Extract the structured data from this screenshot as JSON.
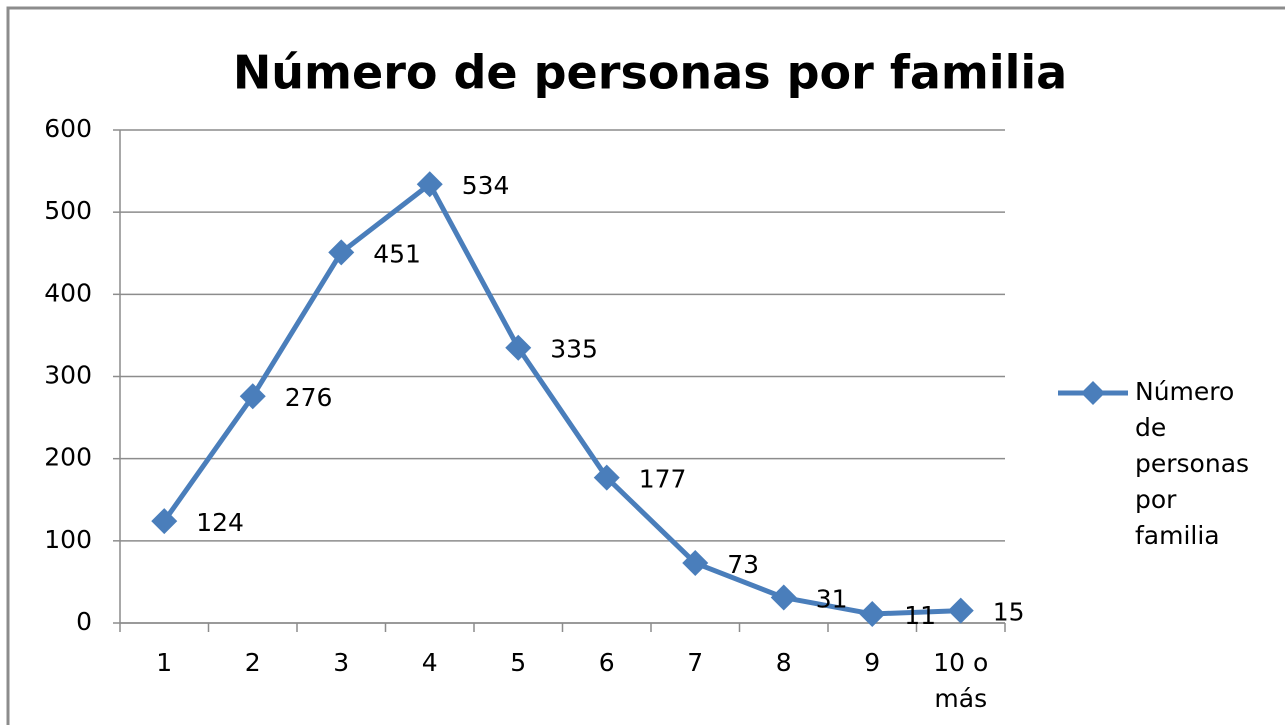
{
  "chart_data": {
    "type": "line",
    "title": "Número de personas por familia",
    "categories": [
      "1",
      "2",
      "3",
      "4",
      "5",
      "6",
      "7",
      "8",
      "9",
      "10 o más"
    ],
    "series": [
      {
        "name": "Número de personas por familia",
        "color": "#4a7ebb",
        "values": [
          124,
          276,
          451,
          534,
          335,
          177,
          73,
          31,
          11,
          15
        ]
      }
    ],
    "ylim": [
      0,
      600
    ],
    "yticks": [
      0,
      100,
      200,
      300,
      400,
      500,
      600
    ],
    "grid": true,
    "legend": "right"
  }
}
